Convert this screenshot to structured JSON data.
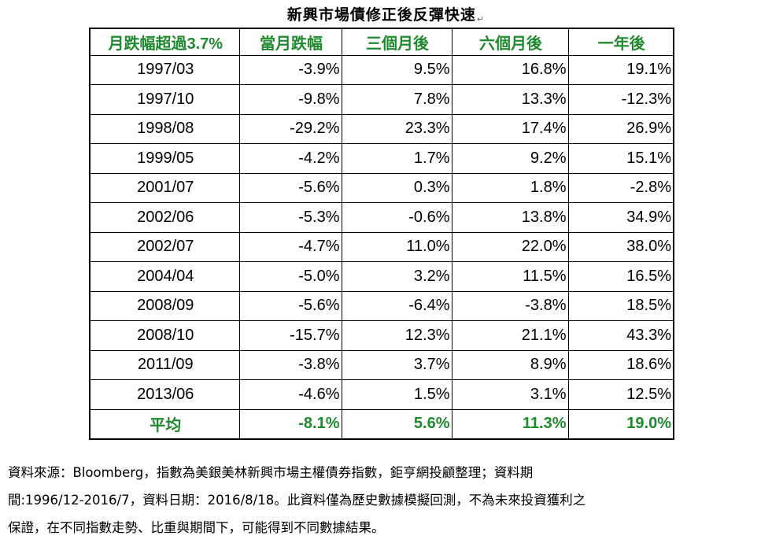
{
  "title": "新興市場債修正後反彈快速",
  "para_mark": "↵",
  "table": {
    "headers": [
      "月跌幅超過3.7%",
      "當月跌幅",
      "三個月後",
      "六個月後",
      "一年後"
    ],
    "rows": [
      [
        "1997/03",
        "-3.9%",
        "9.5%",
        "16.8%",
        "19.1%"
      ],
      [
        "1997/10",
        "-9.8%",
        "7.8%",
        "13.3%",
        "-12.3%"
      ],
      [
        "1998/08",
        "-29.2%",
        "23.3%",
        "17.4%",
        "26.9%"
      ],
      [
        "1999/05",
        "-4.2%",
        "1.7%",
        "9.2%",
        "15.1%"
      ],
      [
        "2001/07",
        "-5.6%",
        "0.3%",
        "1.8%",
        "-2.8%"
      ],
      [
        "2002/06",
        "-5.3%",
        "-0.6%",
        "13.8%",
        "34.9%"
      ],
      [
        "2002/07",
        "-4.7%",
        "11.0%",
        "22.0%",
        "38.0%"
      ],
      [
        "2004/04",
        "-5.0%",
        "3.2%",
        "11.5%",
        "16.5%"
      ],
      [
        "2008/09",
        "-5.6%",
        "-6.4%",
        "-3.8%",
        "18.5%"
      ],
      [
        "2008/10",
        "-15.7%",
        "12.3%",
        "21.1%",
        "43.3%"
      ],
      [
        "2011/09",
        "-3.8%",
        "3.7%",
        "8.9%",
        "18.6%"
      ],
      [
        "2013/06",
        "-4.6%",
        "1.5%",
        "3.1%",
        "12.5%"
      ]
    ],
    "average": [
      "平均",
      "-8.1%",
      "5.6%",
      "11.3%",
      "19.0%"
    ]
  },
  "footnote": {
    "line1": "資料來源：Bloomberg，指數為美銀美林新興市場主權債券指數，鉅亨網投顧整理；資料期",
    "line2": "間:1996/12-2016/7，資料日期：2016/8/18。此資料僅為歷史數據模擬回測，不為未來投資獲利之",
    "line3": "保證，在不同指數走勢、比重與期間下，可能得到不同數據結果。"
  },
  "colors": {
    "header_green": "#1f8a2e"
  }
}
